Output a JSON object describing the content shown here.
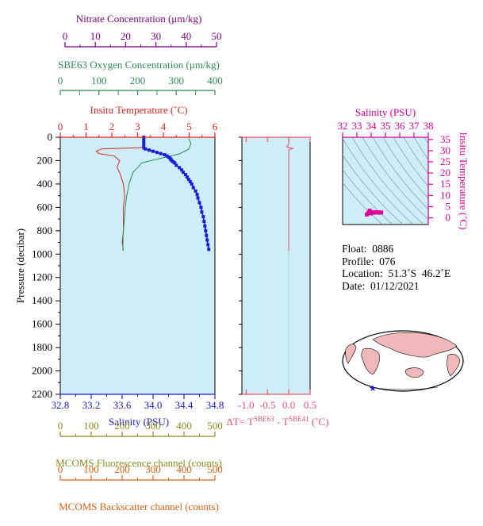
{
  "colors": {
    "plot_bg": "#cdeef6",
    "temperature": "#e8211d",
    "oxygen": "#2e8b57",
    "salinity": "#1a1adc",
    "nitrate": "#800080",
    "fluorescence": "#8b8b1e",
    "backscatter": "#e06010",
    "delta_t": "#f0506e",
    "ts_diagram": "#e0009a"
  },
  "axes": {
    "nitrate": {
      "label": "Nitrate Concentration (μm/kg)",
      "ticks": [
        "0",
        "10",
        "20",
        "30",
        "40",
        "50"
      ]
    },
    "oxygen": {
      "label": "SBE63 Oxygen Concentration (μm/kg)",
      "ticks": [
        "0",
        "100",
        "200",
        "300",
        "400"
      ]
    },
    "temperature": {
      "label": "Insitu Temperature (˚C)",
      "ticks": [
        "0",
        "1",
        "2",
        "3",
        "4",
        "5",
        "6"
      ]
    },
    "pressure": {
      "label": "Pressure (decibar)",
      "ticks": [
        "0",
        "200",
        "400",
        "600",
        "800",
        "1000",
        "1200",
        "1400",
        "1600",
        "1800",
        "2000",
        "2200"
      ]
    },
    "salinity": {
      "label": "Salinity (PSU)",
      "ticks": [
        "32.8",
        "33.2",
        "33.6",
        "34.0",
        "34.4",
        "34.8"
      ]
    },
    "fluorescence": {
      "label": "MCOMS Fluorescence channel (counts)",
      "ticks": [
        "0",
        "100",
        "200",
        "300",
        "400",
        "500"
      ]
    },
    "backscatter": {
      "label": "MCOMS Backscatter channel (counts)",
      "ticks": [
        "0",
        "100",
        "200",
        "300",
        "400",
        "500"
      ]
    },
    "delta_t": {
      "label_parts": [
        "ΔT= T",
        "SBE63",
        " - T",
        "SBE41",
        " (˚C)"
      ],
      "ticks": [
        "-1.0",
        "-0.5",
        "0.0",
        "0.5"
      ]
    },
    "ts_salinity": {
      "label": "Salinity (PSU)",
      "ticks": [
        "32",
        "33",
        "34",
        "35",
        "36",
        "37",
        "38"
      ]
    },
    "ts_temperature": {
      "label": "Insitu Temperature (˚C)",
      "ticks": [
        "0",
        "5",
        "10",
        "15",
        "20",
        "25",
        "30",
        "35"
      ]
    }
  },
  "info": {
    "float_label": "Float:",
    "float_value": "0886",
    "profile_label": "Profile:",
    "profile_value": "076",
    "location_label": "Location:",
    "location_value": "51.3˚S  46.2˚E",
    "date_label": "Date:",
    "date_value": "01/12/2021"
  },
  "chart_data": [
    {
      "type": "line",
      "name": "profile",
      "x_axes": {
        "temperature": [
          0,
          6
        ],
        "salinity": [
          32.8,
          34.8
        ],
        "oxygen": [
          0,
          400
        ],
        "nitrate": [
          0,
          50
        ]
      },
      "ylim": [
        2200,
        0
      ],
      "series": [
        {
          "key": "temperature",
          "points": [
            [
              3.2,
              0
            ],
            [
              3.2,
              50
            ],
            [
              3.2,
              80
            ],
            [
              3.1,
              90
            ],
            [
              2.3,
              95
            ],
            [
              1.6,
              100
            ],
            [
              1.4,
              120
            ],
            [
              1.5,
              140
            ],
            [
              2.1,
              160
            ],
            [
              2.3,
              200
            ],
            [
              2.2,
              260
            ],
            [
              2.3,
              300
            ],
            [
              2.45,
              400
            ],
            [
              2.5,
              500
            ],
            [
              2.45,
              600
            ],
            [
              2.45,
              700
            ],
            [
              2.45,
              800
            ],
            [
              2.4,
              900
            ],
            [
              2.45,
              970
            ]
          ]
        },
        {
          "key": "oxygen",
          "points": [
            [
              332,
              10
            ],
            [
              338,
              50
            ],
            [
              333,
              100
            ],
            [
              310,
              140
            ],
            [
              260,
              180
            ],
            [
              210,
              220
            ],
            [
              200,
              260
            ],
            [
              188,
              300
            ],
            [
              178,
              400
            ],
            [
              172,
              500
            ],
            [
              168,
              600
            ],
            [
              166,
              700
            ],
            [
              163,
              800
            ],
            [
              162,
              900
            ],
            [
              162,
              970
            ]
          ]
        },
        {
          "key": "salinity",
          "markers": true,
          "points": [
            [
              33.88,
              0
            ],
            [
              33.88,
              30
            ],
            [
              33.88,
              60
            ],
            [
              33.88,
              90
            ],
            [
              33.9,
              100
            ],
            [
              33.95,
              110
            ],
            [
              34.0,
              120
            ],
            [
              34.05,
              130
            ],
            [
              34.1,
              140
            ],
            [
              34.15,
              150
            ],
            [
              34.18,
              160
            ],
            [
              34.2,
              170
            ],
            [
              34.22,
              180
            ],
            [
              34.23,
              190
            ],
            [
              34.24,
              200
            ],
            [
              34.26,
              210
            ],
            [
              34.28,
              220
            ],
            [
              34.3,
              240
            ],
            [
              34.34,
              260
            ],
            [
              34.37,
              280
            ],
            [
              34.39,
              300
            ],
            [
              34.42,
              320
            ],
            [
              34.44,
              340
            ],
            [
              34.46,
              360
            ],
            [
              34.48,
              380
            ],
            [
              34.5,
              400
            ],
            [
              34.52,
              430
            ],
            [
              34.55,
              460
            ],
            [
              34.57,
              490
            ],
            [
              34.58,
              520
            ],
            [
              34.6,
              560
            ],
            [
              34.62,
              600
            ],
            [
              34.63,
              640
            ],
            [
              34.65,
              680
            ],
            [
              34.66,
              720
            ],
            [
              34.67,
              760
            ],
            [
              34.68,
              800
            ],
            [
              34.69,
              840
            ],
            [
              34.7,
              880
            ],
            [
              34.71,
              920
            ],
            [
              34.72,
              960
            ]
          ]
        }
      ]
    },
    {
      "type": "line",
      "name": "delta_t",
      "xlim": [
        -1.1,
        0.5
      ],
      "ylim": [
        2200,
        0
      ],
      "series": [
        {
          "key": "delta_t",
          "points": [
            [
              0.0,
              0
            ],
            [
              0.0,
              60
            ],
            [
              -0.05,
              80
            ],
            [
              0.0,
              90
            ],
            [
              0.1,
              95
            ],
            [
              0.0,
              110
            ],
            [
              0.0,
              200
            ],
            [
              0.0,
              400
            ],
            [
              0.0,
              600
            ],
            [
              0.0,
              800
            ],
            [
              0.0,
              970
            ]
          ]
        }
      ]
    },
    {
      "type": "scatter",
      "name": "ts_diagram",
      "xlim": [
        32,
        38
      ],
      "ylim": [
        -3,
        36
      ],
      "series": [
        {
          "key": "ts",
          "points": [
            [
              33.9,
              3.2
            ],
            [
              34.0,
              2.0
            ],
            [
              33.9,
              2.4
            ],
            [
              34.1,
              2.5
            ],
            [
              34.3,
              2.5
            ],
            [
              34.5,
              2.4
            ],
            [
              34.6,
              2.3
            ],
            [
              34.7,
              2.4
            ],
            [
              33.7,
              1.5
            ],
            [
              33.8,
              2.2
            ],
            [
              34.2,
              2.3
            ],
            [
              34.4,
              2.5
            ]
          ]
        }
      ]
    }
  ]
}
